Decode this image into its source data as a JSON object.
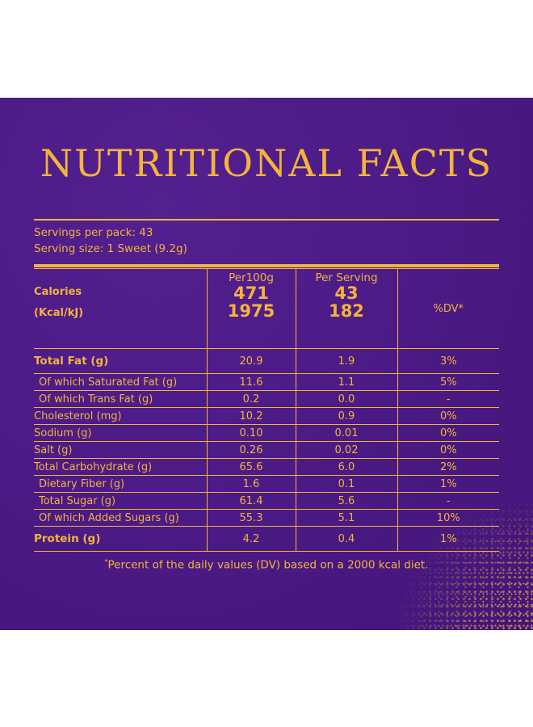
{
  "title": "NUTRITIONAL FACTS",
  "servings_per_pack": "Servings per pack: 43",
  "serving_size": "Serving size: 1 Sweet (9.2g)",
  "headers": {
    "per100g": "Per100g",
    "per_serving": "Per Serving",
    "dv": "%DV*"
  },
  "calories": {
    "label_line1": "Calories",
    "label_line2": "(Kcal/kJ)",
    "per100g_kcal": "471",
    "per100g_kj": "1975",
    "serving_kcal": "43",
    "serving_kj": "182"
  },
  "rows": [
    {
      "label": "Total Fat (g)",
      "per100g": "20.9",
      "serving": "1.9",
      "dv": "3%"
    },
    {
      "label": "Of which Saturated Fat (g)",
      "per100g": "11.6",
      "serving": "1.1",
      "dv": "5%"
    },
    {
      "label": "Of which Trans Fat (g)",
      "per100g": "0.2",
      "serving": "0.0",
      "dv": "-"
    },
    {
      "label": "Cholesterol (mg)",
      "per100g": "10.2",
      "serving": "0.9",
      "dv": "0%"
    },
    {
      "label": "Sodium (g)",
      "per100g": "0.10",
      "serving": "0.01",
      "dv": "0%"
    },
    {
      "label": "Salt (g)",
      "per100g": "0.26",
      "serving": "0.02",
      "dv": "0%"
    },
    {
      "label": "Total Carbohydrate (g)",
      "per100g": "65.6",
      "serving": "6.0",
      "dv": "2%"
    },
    {
      "label": "Dietary Fiber (g)",
      "per100g": "1.6",
      "serving": "0.1",
      "dv": "1%"
    },
    {
      "label": "Total Sugar (g)",
      "per100g": "61.4",
      "serving": "5.6",
      "dv": "-"
    },
    {
      "label": "Of which Added Sugars (g)",
      "per100g": "55.3",
      "serving": "5.1",
      "dv": "10%"
    },
    {
      "label": "Protein (g)",
      "per100g": "4.2",
      "serving": "0.4",
      "dv": "1%"
    }
  ],
  "footnote_mark": "*",
  "footnote": "Percent of the daily values (DV) based on a 2000 kcal diet.",
  "colors": {
    "background": "#4b1a84",
    "accent": "#f2b43c"
  }
}
